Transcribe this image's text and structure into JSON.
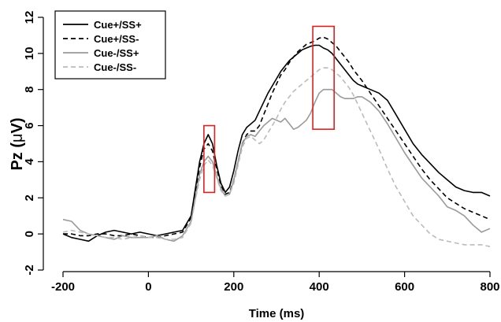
{
  "chart_data": {
    "type": "line",
    "xlabel": "Time (ms)",
    "ylabel_prefix": "Pz (",
    "ylabel_mu": "μ",
    "ylabel_suffix": "V)",
    "xlim": [
      -200,
      800
    ],
    "ylim": [
      -2,
      12
    ],
    "x_ticks": [
      -200,
      0,
      200,
      400,
      600,
      800
    ],
    "y_ticks": [
      -2,
      0,
      2,
      4,
      6,
      8,
      10,
      12
    ],
    "grid": false,
    "legend_position": "top-left",
    "series": [
      {
        "name": "Cue+/SS+",
        "color": "#000000",
        "dash": "solid",
        "x": [
          -200,
          -180,
          -160,
          -140,
          -120,
          -100,
          -80,
          -60,
          -40,
          -20,
          0,
          20,
          40,
          60,
          80,
          100,
          110,
          120,
          130,
          140,
          150,
          160,
          170,
          180,
          190,
          200,
          210,
          220,
          230,
          240,
          250,
          260,
          270,
          280,
          290,
          300,
          310,
          320,
          330,
          340,
          350,
          360,
          370,
          380,
          390,
          400,
          410,
          420,
          430,
          440,
          450,
          460,
          470,
          480,
          490,
          500,
          520,
          540,
          560,
          580,
          600,
          620,
          640,
          660,
          680,
          700,
          720,
          740,
          760,
          780,
          800
        ],
        "y": [
          0.0,
          -0.2,
          -0.3,
          -0.4,
          -0.1,
          0.1,
          0.2,
          0.1,
          0.0,
          0.1,
          0.0,
          -0.1,
          0.0,
          0.1,
          0.2,
          1.0,
          2.5,
          4.0,
          5.0,
          5.5,
          5.0,
          3.8,
          2.8,
          2.3,
          2.6,
          3.5,
          4.6,
          5.5,
          5.9,
          6.1,
          6.3,
          6.8,
          7.3,
          7.8,
          8.2,
          8.6,
          9.0,
          9.3,
          9.6,
          9.8,
          10.0,
          10.2,
          10.3,
          10.4,
          10.45,
          10.45,
          10.3,
          10.2,
          10.0,
          9.7,
          9.4,
          9.1,
          8.8,
          8.5,
          8.3,
          8.2,
          8.0,
          7.8,
          7.4,
          6.6,
          5.8,
          5.0,
          4.4,
          3.9,
          3.4,
          3.0,
          2.6,
          2.4,
          2.3,
          2.3,
          2.1
        ]
      },
      {
        "name": "Cue+/SS-",
        "color": "#000000",
        "dash": "dashed",
        "x": [
          -200,
          -180,
          -160,
          -140,
          -120,
          -100,
          -80,
          -60,
          -40,
          -20,
          0,
          20,
          40,
          60,
          80,
          100,
          110,
          120,
          130,
          140,
          150,
          160,
          170,
          180,
          190,
          200,
          210,
          220,
          230,
          240,
          250,
          260,
          270,
          280,
          290,
          300,
          310,
          320,
          330,
          340,
          350,
          360,
          370,
          380,
          390,
          400,
          410,
          420,
          430,
          440,
          450,
          460,
          470,
          480,
          490,
          500,
          520,
          540,
          560,
          580,
          600,
          620,
          640,
          660,
          680,
          700,
          720,
          740,
          760,
          780,
          800
        ],
        "y": [
          0.0,
          0.0,
          -0.1,
          -0.1,
          0.0,
          0.0,
          -0.1,
          -0.1,
          0.0,
          -0.1,
          -0.2,
          -0.2,
          -0.1,
          0.0,
          0.1,
          0.9,
          2.2,
          3.7,
          4.7,
          5.0,
          4.6,
          3.6,
          2.7,
          2.2,
          2.3,
          3.0,
          4.0,
          5.0,
          5.5,
          5.7,
          5.7,
          6.0,
          6.6,
          7.2,
          7.8,
          8.3,
          8.8,
          9.1,
          9.5,
          9.8,
          10.1,
          10.3,
          10.5,
          10.6,
          10.7,
          10.85,
          10.9,
          10.8,
          10.6,
          10.4,
          10.1,
          9.8,
          9.5,
          9.1,
          8.8,
          8.5,
          7.8,
          7.1,
          6.4,
          5.7,
          5.0,
          4.3,
          3.6,
          3.0,
          2.5,
          2.0,
          1.7,
          1.4,
          1.2,
          1.0,
          0.8
        ]
      },
      {
        "name": "Cue-/SS+",
        "color": "#9a9a9a",
        "dash": "solid",
        "x": [
          -200,
          -180,
          -160,
          -140,
          -120,
          -100,
          -80,
          -60,
          -40,
          -20,
          0,
          20,
          40,
          60,
          80,
          100,
          110,
          120,
          130,
          140,
          150,
          160,
          170,
          180,
          190,
          200,
          210,
          220,
          230,
          240,
          250,
          260,
          270,
          280,
          290,
          300,
          310,
          320,
          330,
          340,
          350,
          360,
          370,
          380,
          390,
          400,
          410,
          420,
          430,
          440,
          450,
          460,
          470,
          480,
          490,
          500,
          520,
          540,
          560,
          580,
          600,
          620,
          640,
          660,
          680,
          700,
          720,
          740,
          760,
          780,
          800
        ],
        "y": [
          0.8,
          0.7,
          0.2,
          0.0,
          -0.1,
          -0.2,
          -0.3,
          -0.1,
          -0.2,
          -0.2,
          -0.2,
          -0.1,
          -0.3,
          -0.4,
          -0.1,
          0.7,
          2.0,
          3.3,
          4.0,
          4.3,
          4.0,
          3.2,
          2.5,
          2.1,
          2.2,
          3.0,
          4.0,
          5.0,
          5.4,
          5.5,
          5.4,
          5.7,
          6.0,
          6.2,
          6.4,
          6.3,
          6.2,
          6.4,
          6.1,
          5.8,
          5.9,
          6.1,
          6.3,
          6.7,
          7.3,
          7.8,
          8.0,
          8.0,
          8.0,
          7.8,
          7.6,
          7.5,
          7.5,
          7.5,
          7.6,
          7.6,
          7.3,
          6.8,
          6.1,
          5.3,
          4.5,
          3.8,
          3.1,
          2.6,
          2.1,
          1.5,
          1.3,
          1.0,
          0.5,
          0.1,
          0.3
        ]
      },
      {
        "name": "Cue-/SS-",
        "color": "#bbbbbb",
        "dash": "dashed",
        "x": [
          -200,
          -180,
          -160,
          -140,
          -120,
          -100,
          -80,
          -60,
          -40,
          -20,
          0,
          20,
          40,
          60,
          80,
          100,
          110,
          120,
          130,
          140,
          150,
          160,
          170,
          180,
          190,
          200,
          210,
          220,
          230,
          240,
          250,
          260,
          270,
          280,
          290,
          300,
          310,
          320,
          330,
          340,
          350,
          360,
          370,
          380,
          390,
          400,
          410,
          420,
          430,
          440,
          450,
          460,
          470,
          480,
          490,
          500,
          520,
          540,
          560,
          580,
          600,
          620,
          640,
          660,
          680,
          700,
          720,
          740,
          760,
          780,
          800
        ],
        "y": [
          0.1,
          0.2,
          0.1,
          0.0,
          -0.1,
          -0.2,
          -0.2,
          -0.3,
          -0.2,
          -0.1,
          -0.2,
          -0.2,
          -0.3,
          -0.3,
          -0.2,
          0.6,
          1.9,
          3.0,
          3.8,
          4.1,
          3.8,
          3.1,
          2.4,
          2.1,
          2.2,
          2.8,
          3.8,
          4.8,
          5.3,
          5.4,
          5.2,
          5.0,
          5.2,
          5.6,
          6.0,
          6.4,
          6.9,
          7.3,
          7.6,
          7.9,
          8.1,
          8.3,
          8.5,
          8.7,
          8.9,
          9.1,
          9.2,
          9.2,
          9.1,
          8.9,
          8.7,
          8.4,
          8.1,
          7.7,
          7.2,
          6.7,
          5.7,
          4.7,
          3.6,
          2.6,
          1.8,
          1.0,
          0.5,
          0.0,
          -0.3,
          -0.4,
          -0.5,
          -0.6,
          -0.6,
          -0.6,
          -0.7
        ]
      }
    ],
    "highlight_boxes": [
      {
        "x0": 130,
        "x1": 155,
        "y0": 2.3,
        "y1": 6.0,
        "color": "#e02020"
      },
      {
        "x0": 385,
        "x1": 435,
        "y0": 5.8,
        "y1": 11.5,
        "color": "#e02020"
      }
    ]
  }
}
